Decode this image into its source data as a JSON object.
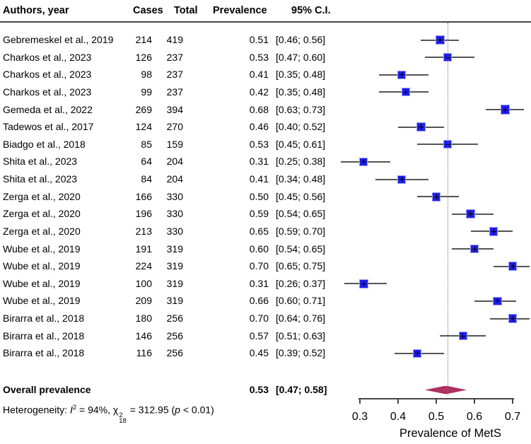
{
  "colors": {
    "square": "#1f1fe8",
    "square_halo": "#9c9cf5",
    "diamond": "#b03060",
    "ci_line": "#555555",
    "axis": "#454545",
    "dotted_line": "#757575",
    "text": "#000000"
  },
  "table": {
    "headers": {
      "authors": "Authors, year",
      "cases": "Cases",
      "total": "Total",
      "prevalence": "Prevalence",
      "ci": "95% C.I."
    }
  },
  "chart_data": {
    "type": "scatter",
    "subtype": "forest-plot",
    "title": "",
    "xlabel": "Prevalence of MetS",
    "x_ticks": [
      "0.3",
      "0.4",
      "0.5",
      "0.6",
      "0.7"
    ],
    "axis_range": [
      0.3,
      0.7
    ],
    "pooled_dotted_line": 0.53,
    "studies": [
      {
        "label": "Gebremeskel et al., 2019",
        "cases": 214,
        "total": 419,
        "prevalence": 0.51,
        "ci_low": 0.46,
        "ci_high": 0.56
      },
      {
        "label": "Charkos et al., 2023",
        "cases": 126,
        "total": 237,
        "prevalence": 0.53,
        "ci_low": 0.47,
        "ci_high": 0.6
      },
      {
        "label": "Charkos et al., 2023",
        "cases": 98,
        "total": 237,
        "prevalence": 0.41,
        "ci_low": 0.35,
        "ci_high": 0.48
      },
      {
        "label": "Charkos et al., 2023",
        "cases": 99,
        "total": 237,
        "prevalence": 0.42,
        "ci_low": 0.35,
        "ci_high": 0.48
      },
      {
        "label": "Gemeda et al., 2022",
        "cases": 269,
        "total": 394,
        "prevalence": 0.68,
        "ci_low": 0.63,
        "ci_high": 0.73
      },
      {
        "label": "Tadewos et al., 2017",
        "cases": 124,
        "total": 270,
        "prevalence": 0.46,
        "ci_low": 0.4,
        "ci_high": 0.52
      },
      {
        "label": "Biadgo et al., 2018",
        "cases": 85,
        "total": 159,
        "prevalence": 0.53,
        "ci_low": 0.45,
        "ci_high": 0.61
      },
      {
        "label": "Shita et al., 2023",
        "cases": 64,
        "total": 204,
        "prevalence": 0.31,
        "ci_low": 0.25,
        "ci_high": 0.38
      },
      {
        "label": "Shita et al., 2023",
        "cases": 84,
        "total": 204,
        "prevalence": 0.41,
        "ci_low": 0.34,
        "ci_high": 0.48
      },
      {
        "label": "Zerga et al., 2020",
        "cases": 166,
        "total": 330,
        "prevalence": 0.5,
        "ci_low": 0.45,
        "ci_high": 0.56
      },
      {
        "label": "Zerga et al., 2020",
        "cases": 196,
        "total": 330,
        "prevalence": 0.59,
        "ci_low": 0.54,
        "ci_high": 0.65
      },
      {
        "label": "Zerga et al., 2020",
        "cases": 213,
        "total": 330,
        "prevalence": 0.65,
        "ci_low": 0.59,
        "ci_high": 0.7
      },
      {
        "label": "Wube et al., 2019",
        "cases": 191,
        "total": 319,
        "prevalence": 0.6,
        "ci_low": 0.54,
        "ci_high": 0.65
      },
      {
        "label": "Wube et al., 2019",
        "cases": 224,
        "total": 319,
        "prevalence": 0.7,
        "ci_low": 0.65,
        "ci_high": 0.75
      },
      {
        "label": "Wube et al., 2019",
        "cases": 100,
        "total": 319,
        "prevalence": 0.31,
        "ci_low": 0.26,
        "ci_high": 0.37
      },
      {
        "label": "Wube et al., 2019",
        "cases": 209,
        "total": 319,
        "prevalence": 0.66,
        "ci_low": 0.6,
        "ci_high": 0.71
      },
      {
        "label": "Birarra et al., 2018",
        "cases": 180,
        "total": 256,
        "prevalence": 0.7,
        "ci_low": 0.64,
        "ci_high": 0.76
      },
      {
        "label": "Birarra et al., 2018",
        "cases": 146,
        "total": 256,
        "prevalence": 0.57,
        "ci_low": 0.51,
        "ci_high": 0.63
      },
      {
        "label": "Birarra et al., 2018",
        "cases": 116,
        "total": 256,
        "prevalence": 0.45,
        "ci_low": 0.39,
        "ci_high": 0.52
      }
    ],
    "overall": {
      "label": "Overall prevalence",
      "prevalence": 0.53,
      "ci_low": 0.47,
      "ci_high": 0.58
    }
  },
  "heterogeneity": {
    "prefix": "Heterogeneity: ",
    "i_symbol": "I",
    "i_sup": "2",
    "mid": " = 94%, ",
    "chi_symbol": "χ",
    "chi_sup": "2",
    "chi_sub": "18",
    "equals": " = 312.95 (",
    "p_symbol": "p",
    "suffix": " < 0.01)"
  }
}
